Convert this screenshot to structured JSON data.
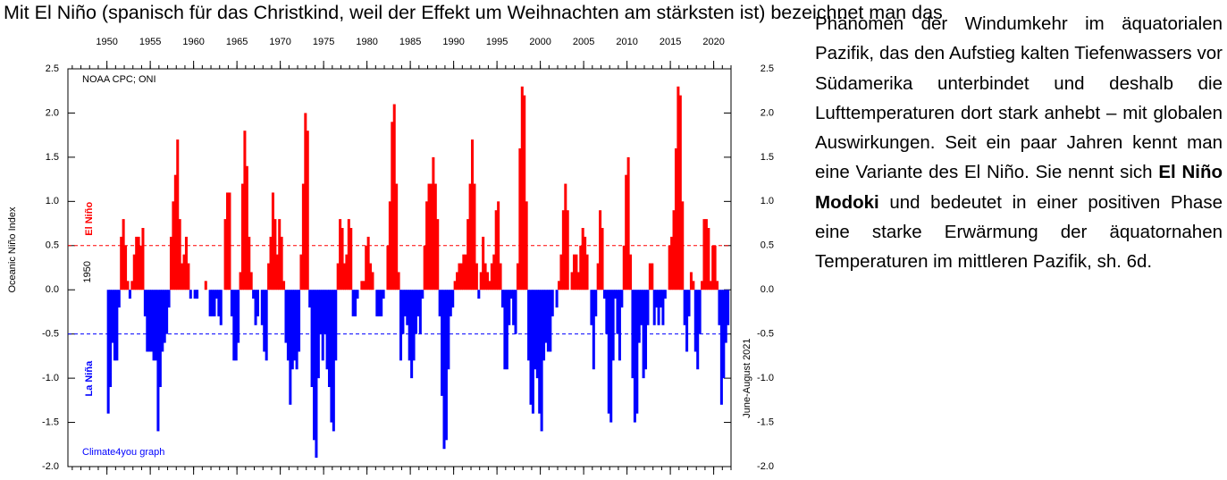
{
  "text": {
    "line1": "Mit El Niño (spanisch für das Christkind, weil der Effekt um Weihnachten am stärksten ist) bezeichnet man das",
    "part1": "Phänomen der Windumkehr im äquatorialen Pazifik, das den Aufstieg kalten Tiefenwassers vor Südamerika unterbindet und deshalb die Lufttemperaturen dort stark anhebt – mit globalen Auswirkungen. Seit ein paar Jahren kennt man eine Variante des El Niño. Sie nennt sich ",
    "bold": "El Niño Modoki",
    "part2": " und bedeutet in einer positiven Phase eine starke Erwärmung der äquatornahen Temperaturen im mittleren Pazifik, sh. 6d."
  },
  "chart_data": {
    "type": "bar",
    "ylabel": "Oceanic Niño Index",
    "annotations": [
      "NOAA CPC; ONI",
      "Climate4you graph",
      "1950",
      "June-August 2021"
    ],
    "colors": {
      "positive": "#ff0000",
      "negative": "#0000ff"
    },
    "reference_lines": [
      {
        "value": 0.5,
        "label": "El Niño",
        "color": "#ff0000"
      },
      {
        "value": -0.5,
        "label": "La Niña",
        "color": "#0000ff"
      }
    ],
    "xlim": [
      1945.5,
      2022
    ],
    "xticks": [
      1950,
      1955,
      1960,
      1965,
      1970,
      1975,
      1980,
      1985,
      1990,
      1995,
      2000,
      2005,
      2010,
      2015,
      2020
    ],
    "ylim": [
      -2,
      2.5
    ],
    "yticks": [
      2.5,
      {
        "value": 2,
        "label": "2.0"
      },
      1.5,
      {
        "value": 1,
        "label": "1.0"
      },
      0.5,
      {
        "value": 0,
        "label": "0.0"
      },
      -0.5,
      {
        "value": -1,
        "label": "-1.0"
      },
      -1.5,
      {
        "value": -2,
        "label": "-2.0"
      }
    ],
    "values": [
      -1.4,
      -1.1,
      -0.6,
      -0.8,
      -0.8,
      -0.2,
      0.6,
      0.8,
      0.5,
      0.1,
      -0.1,
      0.1,
      0.4,
      0.6,
      0.6,
      0.5,
      0.7,
      -0.3,
      -0.7,
      -0.7,
      -0.7,
      -0.8,
      -0.8,
      -1.6,
      -1.1,
      -0.7,
      -0.6,
      -0.5,
      -0.2,
      0.6,
      1.0,
      1.3,
      1.7,
      0.8,
      0.3,
      0.4,
      0.6,
      0.3,
      -0.1,
      0.0,
      -0.1,
      -0.1,
      0.0,
      0.0,
      0.0,
      0.1,
      0.0,
      -0.3,
      -0.3,
      -0.3,
      -0.1,
      -0.3,
      -0.4,
      0.0,
      0.8,
      1.1,
      1.1,
      -0.3,
      -0.8,
      -0.8,
      -0.6,
      0.2,
      1.2,
      1.8,
      1.4,
      0.6,
      0.2,
      -0.1,
      -0.4,
      -0.3,
      0.0,
      -0.4,
      -0.7,
      -0.8,
      0.3,
      0.6,
      1.1,
      0.8,
      0.4,
      0.8,
      0.6,
      0.1,
      -0.6,
      -0.8,
      -1.3,
      -0.9,
      -0.8,
      -0.9,
      -0.7,
      0.4,
      1.2,
      2.0,
      1.8,
      -0.2,
      -1.1,
      -1.7,
      -1.9,
      -1.0,
      -0.5,
      -0.8,
      -0.5,
      -0.9,
      -1.1,
      -1.5,
      -1.6,
      -0.8,
      0.3,
      0.8,
      0.7,
      0.3,
      0.4,
      0.8,
      0.7,
      -0.3,
      -0.3,
      -0.1,
      0.0,
      0.1,
      0.1,
      0.5,
      0.6,
      0.3,
      0.2,
      0.0,
      -0.3,
      -0.3,
      -0.3,
      -0.1,
      0.0,
      0.5,
      1.0,
      1.9,
      2.1,
      1.2,
      0.2,
      -0.8,
      -0.5,
      -0.3,
      -0.4,
      -0.8,
      -1.0,
      -0.8,
      -0.5,
      -0.3,
      -0.5,
      -0.1,
      0.5,
      1.0,
      1.2,
      1.2,
      1.5,
      1.2,
      0.8,
      -0.3,
      -1.2,
      -1.8,
      -1.7,
      -0.9,
      -0.3,
      -0.2,
      0.1,
      0.2,
      0.3,
      0.3,
      0.4,
      0.4,
      0.8,
      1.2,
      1.7,
      1.2,
      0.3,
      -0.1,
      0.2,
      0.6,
      0.3,
      0.2,
      0.1,
      0.3,
      0.4,
      0.9,
      1.0,
      0.3,
      -0.2,
      -0.9,
      -0.9,
      -0.4,
      -0.1,
      -0.4,
      -0.5,
      0.3,
      1.6,
      2.3,
      2.2,
      1.0,
      -0.8,
      -1.3,
      -1.4,
      -0.9,
      -1.0,
      -1.4,
      -1.6,
      -0.8,
      -0.6,
      -0.7,
      -0.7,
      -0.3,
      0.0,
      -0.2,
      0.1,
      0.4,
      0.9,
      1.2,
      0.9,
      0.0,
      0.2,
      0.4,
      0.4,
      0.2,
      0.5,
      0.7,
      0.6,
      0.4,
      0.0,
      -0.4,
      -0.9,
      -0.3,
      0.3,
      0.9,
      0.7,
      -0.1,
      -0.5,
      -1.4,
      -1.5,
      -0.8,
      -0.1,
      -0.5,
      -0.8,
      -0.2,
      0.5,
      1.3,
      1.5,
      0.4,
      -1.0,
      -1.5,
      -1.4,
      -0.6,
      -0.4,
      -1.0,
      -0.9,
      -0.4,
      0.3,
      0.3,
      -0.4,
      -0.2,
      -0.4,
      -0.2,
      -0.4,
      -0.1,
      0.0,
      0.5,
      0.6,
      0.9,
      1.6,
      2.3,
      2.2,
      1.0,
      -0.4,
      -0.7,
      -0.3,
      0.2,
      0.1,
      -0.7,
      -0.9,
      -0.5,
      0.1,
      0.8,
      0.8,
      0.7,
      0.1,
      0.5,
      0.5,
      0.1,
      -0.4,
      -1.3,
      -1.0,
      -0.6,
      -0.4
    ]
  }
}
